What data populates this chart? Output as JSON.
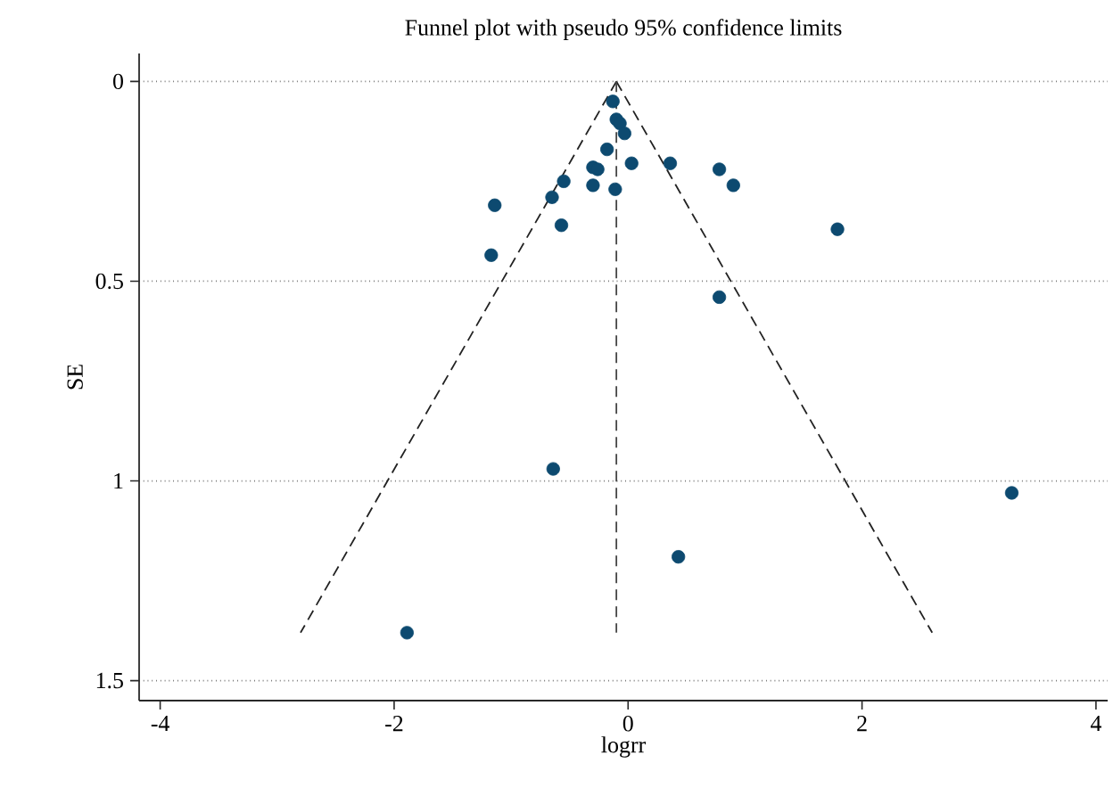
{
  "chart_data": {
    "type": "scatter",
    "title": "Funnel plot with pseudo 95% confidence limits",
    "xlabel": "logrr",
    "ylabel": "SE",
    "xlim": [
      -4.18,
      4.1
    ],
    "ylim": [
      1.55,
      -0.07
    ],
    "xticks": [
      -4,
      -2,
      0,
      2,
      4
    ],
    "yticks": [
      0,
      0.5,
      1,
      1.5
    ],
    "grid": "y",
    "series": [
      {
        "color": "#0d4a70",
        "marker": "circle",
        "x": [
          -0.13,
          -0.1,
          -0.07,
          -0.03,
          -0.18,
          0.03,
          0.36,
          0.78,
          0.9,
          -0.3,
          -0.26,
          -0.55,
          -0.3,
          -0.11,
          -0.65,
          -1.14,
          -0.57,
          1.79,
          -1.17,
          0.78,
          -0.64,
          3.28,
          0.43,
          -1.89
        ],
        "values": [
          0.05,
          0.095,
          0.105,
          0.13,
          0.17,
          0.205,
          0.205,
          0.22,
          0.26,
          0.215,
          0.22,
          0.25,
          0.26,
          0.27,
          0.29,
          0.31,
          0.36,
          0.37,
          0.435,
          0.54,
          0.97,
          1.03,
          1.19,
          1.38
        ]
      },
      {
        "type": "line",
        "color": "#222222",
        "line_style": "dashed",
        "marker": "none",
        "x": [
          -0.1,
          -2.8
        ],
        "values": [
          0,
          1.38
        ]
      },
      {
        "type": "line",
        "color": "#222222",
        "line_style": "dashed",
        "marker": "none",
        "x": [
          -0.1,
          2.6
        ],
        "values": [
          0,
          1.38
        ]
      },
      {
        "type": "line",
        "color": "#444444",
        "line_style": "dashed",
        "marker": "none",
        "x": [
          -0.1,
          -0.1
        ],
        "values": [
          0,
          1.38
        ]
      }
    ]
  }
}
